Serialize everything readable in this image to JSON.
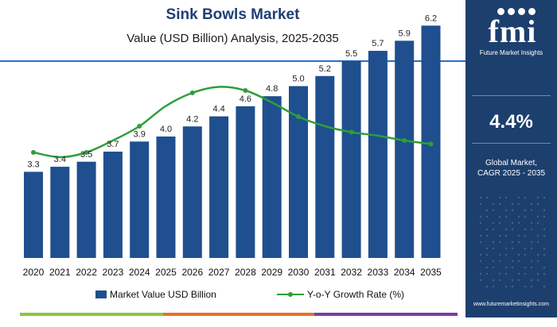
{
  "header": {
    "title": "Sink Bowls Market",
    "subtitle": "Value (USD Billion) Analysis, 2025-2035"
  },
  "colors": {
    "bar": "#1f4f8f",
    "line": "#2e9e3a",
    "panel": "#1c3f6e",
    "title": "#1f3f73",
    "rule": "#2a6fc9"
  },
  "chart_data": {
    "type": "bar",
    "categories": [
      "2020",
      "2021",
      "2022",
      "2023",
      "2024",
      "2025",
      "2026",
      "2027",
      "2028",
      "2029",
      "2030",
      "2031",
      "2032",
      "2033",
      "2034",
      "2035"
    ],
    "series": [
      {
        "name": "Market Value USD Billion",
        "type": "bar",
        "values": [
          3.3,
          3.4,
          3.5,
          3.7,
          3.9,
          4.0,
          4.2,
          4.4,
          4.6,
          4.8,
          5.0,
          5.2,
          5.5,
          5.7,
          5.9,
          6.2
        ],
        "labels": [
          "3.3",
          "3.4",
          "3.5",
          "3.7",
          "3.9",
          "4.0",
          "4.2",
          "4.4",
          "4.6",
          "4.8",
          "5.0",
          "5.2",
          "5.5",
          "5.7",
          "5.9",
          "6.2"
        ]
      },
      {
        "name": "Y-o-Y Growth Rate (%)",
        "type": "line",
        "values": [
          3.6,
          3.2,
          3.6,
          4.6,
          5.8,
          7.5,
          8.6,
          9.1,
          8.8,
          7.8,
          6.6,
          5.8,
          5.3,
          5.0,
          4.6,
          4.3
        ]
      }
    ],
    "legend": "bottom-center",
    "grid": false
  },
  "legend": {
    "bar_label": "Market Value USD Billion",
    "line_label": "Y-o-Y Growth Rate (%)"
  },
  "side_panel": {
    "logo_text": "fmi",
    "logo_subtext": "Future Market Insights",
    "cagr_value": "4.4%",
    "cagr_caption_line1": "Global Market,",
    "cagr_caption_line2": "CAGR 2025 - 2035",
    "website": "www.futuremarketinsights.com"
  }
}
